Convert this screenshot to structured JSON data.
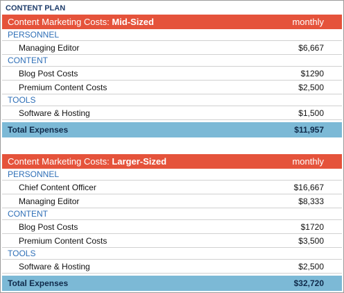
{
  "header": {
    "title": "CONTENT PLAN"
  },
  "tables": [
    {
      "title": "Content Marketing Costs:",
      "title_emphasis": "Mid-Sized",
      "period": "monthly",
      "sections": [
        {
          "name": "PERSONNEL",
          "rows": [
            {
              "label": "Managing Editor",
              "amount": "$6,667"
            }
          ]
        },
        {
          "name": "CONTENT",
          "rows": [
            {
              "label": "Blog Post Costs",
              "amount": "$1290"
            },
            {
              "label": "Premium Content Costs",
              "amount": "$2,500"
            }
          ]
        },
        {
          "name": "TOOLS",
          "rows": [
            {
              "label": "Software & Hosting",
              "amount": "$1,500"
            }
          ]
        }
      ],
      "total": {
        "label": "Total Expenses",
        "amount": "$11,957"
      }
    },
    {
      "title": "Content Marketing Costs:",
      "title_emphasis": "Larger-Sized",
      "period": "monthly",
      "sections": [
        {
          "name": "PERSONNEL",
          "rows": [
            {
              "label": "Chief Content Officer",
              "amount": "$16,667"
            },
            {
              "label": "Managing Editor",
              "amount": "$8,333"
            }
          ]
        },
        {
          "name": "CONTENT",
          "rows": [
            {
              "label": "Blog Post Costs",
              "amount": "$1720"
            },
            {
              "label": "Premium Content Costs",
              "amount": "$3,500"
            }
          ]
        },
        {
          "name": "TOOLS",
          "rows": [
            {
              "label": "Software & Hosting",
              "amount": "$2,500"
            }
          ]
        }
      ],
      "total": {
        "label": "Total Expenses",
        "amount": "$32,720"
      }
    }
  ]
}
